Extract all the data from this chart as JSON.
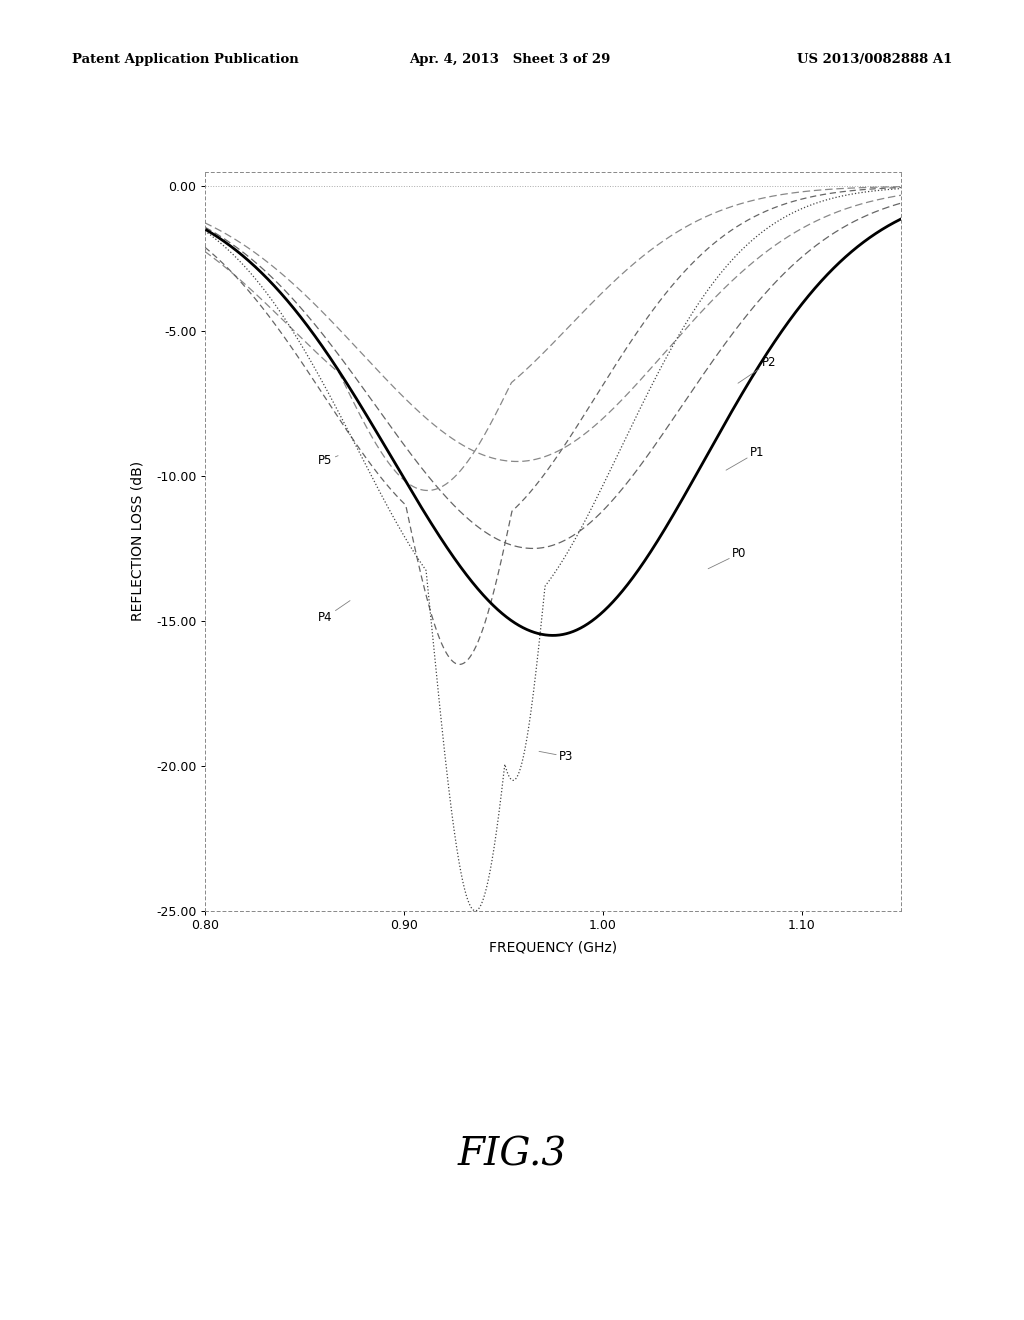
{
  "header_left": "Patent Application Publication",
  "header_mid": "Apr. 4, 2013   Sheet 3 of 29",
  "header_right": "US 2013/0082888 A1",
  "fig_label": "FIG.3",
  "xlabel": "FREQUENCY (GHz)",
  "ylabel": "REFLECTION LOSS (dB)",
  "xlim": [
    0.8,
    1.15
  ],
  "ylim": [
    -25.0,
    0.5
  ],
  "xticks": [
    0.8,
    0.9,
    1.0,
    1.1
  ],
  "yticks": [
    0.0,
    -5.0,
    -10.0,
    -15.0,
    -20.0,
    -25.0
  ],
  "background_color": "#ffffff",
  "plot_bg_color": "#ffffff"
}
